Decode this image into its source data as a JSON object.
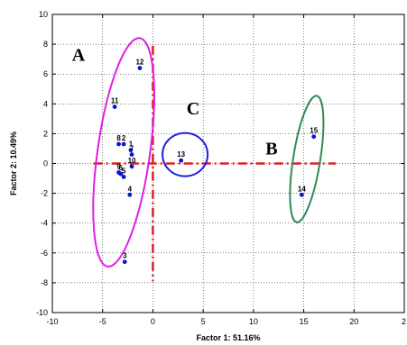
{
  "chart_data": {
    "type": "scatter",
    "xlabel": "Factor 1: 51.16%",
    "ylabel": "Factor 2: 10.49%",
    "xlim": [
      -10,
      25
    ],
    "ylim": [
      -10,
      10
    ],
    "x_ticks": [
      "-10",
      "-5",
      "0",
      "5",
      "10",
      "15",
      "20",
      "2"
    ],
    "y_ticks": [
      "10",
      "8",
      "6",
      "4",
      "2",
      "0",
      "-2",
      "-4",
      "-6",
      "-8",
      "-10"
    ],
    "grid": true,
    "points": [
      {
        "label": "1",
        "x": -2.2,
        "y": 0.9
      },
      {
        "label": "2",
        "x": -2.9,
        "y": 1.3
      },
      {
        "label": "3",
        "x": -2.8,
        "y": -6.6
      },
      {
        "label": "4",
        "x": -2.3,
        "y": -2.1
      },
      {
        "label": "5",
        "x": -2.9,
        "y": -0.9
      },
      {
        "label": "6",
        "x": -3.2,
        "y": -0.7
      },
      {
        "label": "7",
        "x": -2.1,
        "y": 0.6
      },
      {
        "label": "8",
        "x": -3.4,
        "y": 1.3
      },
      {
        "label": "9",
        "x": -3.4,
        "y": -0.6
      },
      {
        "label": "10",
        "x": -2.1,
        "y": -0.2
      },
      {
        "label": "11",
        "x": -3.8,
        "y": 3.8
      },
      {
        "label": "12",
        "x": -1.3,
        "y": 6.4
      },
      {
        "label": "13",
        "x": 2.8,
        "y": 0.2
      },
      {
        "label": "14",
        "x": 14.8,
        "y": -2.1
      },
      {
        "label": "15",
        "x": 16.0,
        "y": 1.8
      }
    ],
    "groups": [
      {
        "label": "A",
        "color": "#e11ee8"
      },
      {
        "label": "B",
        "color": "#2e8b57"
      },
      {
        "label": "C",
        "color": "#1e1ee6"
      }
    ],
    "reference_lines_color": "#e02020",
    "point_color": "#0a14d6"
  }
}
